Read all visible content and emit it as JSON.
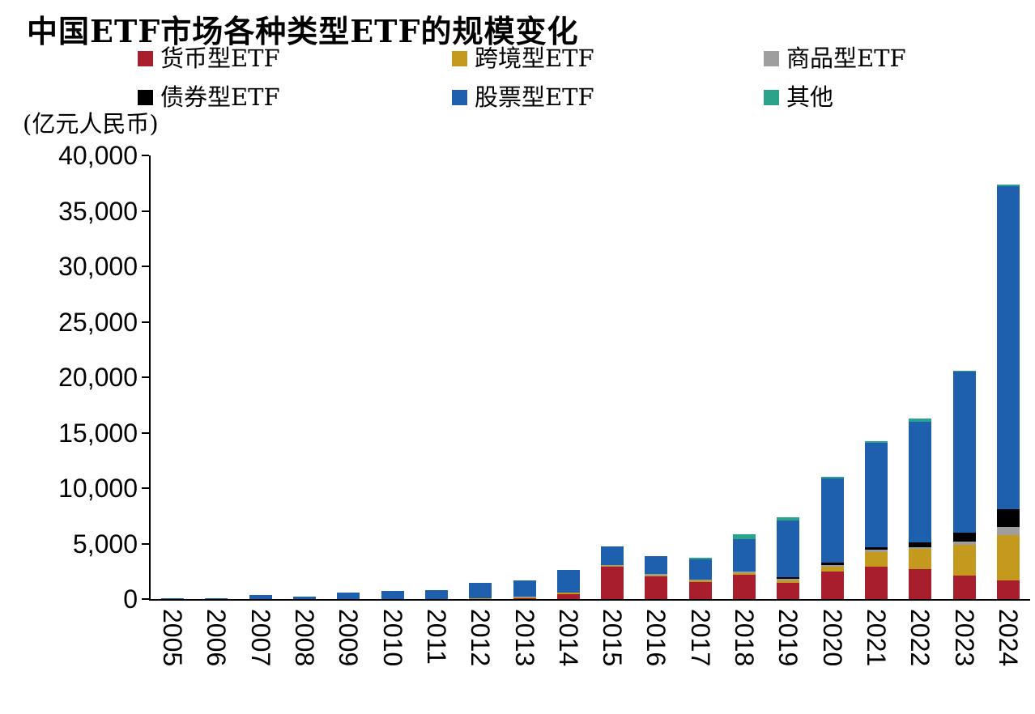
{
  "title": "中国ETF市场各种类型ETF的规模变化",
  "unit_label": "(亿元人民币)",
  "chart_data": {
    "type": "bar",
    "stacked": true,
    "title": "中国ETF市场各种类型ETF的规模变化",
    "ylabel": "(亿元人民币)",
    "ylim": [
      0,
      40000
    ],
    "ytick_step": 5000,
    "grid": false,
    "legend_position": "top",
    "categories": [
      "2005",
      "2006",
      "2007",
      "2008",
      "2009",
      "2010",
      "2011",
      "2012",
      "2013",
      "2014",
      "2015",
      "2016",
      "2017",
      "2018",
      "2019",
      "2020",
      "2021",
      "2022",
      "2023",
      "2024"
    ],
    "series": [
      {
        "name": "货币型ETF",
        "color": "#A81E2C",
        "values": [
          0,
          0,
          0,
          0,
          0,
          0,
          0,
          0,
          100,
          450,
          2900,
          2050,
          1500,
          2200,
          1450,
          2500,
          2900,
          2700,
          2100,
          1700
        ]
      },
      {
        "name": "跨境型ETF",
        "color": "#C39A1E",
        "values": [
          0,
          0,
          0,
          0,
          0,
          0,
          0,
          50,
          80,
          100,
          100,
          100,
          150,
          150,
          250,
          400,
          1300,
          1800,
          2800,
          4100
        ]
      },
      {
        "name": "商品型ETF",
        "color": "#9E9E9E",
        "values": [
          0,
          0,
          0,
          0,
          0,
          0,
          0,
          0,
          50,
          60,
          80,
          120,
          100,
          100,
          150,
          200,
          250,
          200,
          300,
          700
        ]
      },
      {
        "name": "债券型ETF",
        "color": "#000000",
        "values": [
          0,
          0,
          0,
          0,
          0,
          0,
          0,
          0,
          0,
          0,
          0,
          0,
          0,
          50,
          100,
          150,
          200,
          400,
          800,
          1600
        ]
      },
      {
        "name": "股票型ETF",
        "color": "#1E5FAE",
        "values": [
          20,
          100,
          350,
          250,
          600,
          700,
          800,
          1400,
          1450,
          2000,
          1700,
          1600,
          1850,
          2900,
          5150,
          7600,
          9450,
          10900,
          14500,
          29100
        ]
      },
      {
        "name": "其他",
        "color": "#2AA38B",
        "values": [
          0,
          0,
          0,
          0,
          0,
          0,
          0,
          0,
          0,
          0,
          0,
          0,
          100,
          450,
          300,
          150,
          150,
          250,
          100,
          200
        ]
      }
    ]
  }
}
